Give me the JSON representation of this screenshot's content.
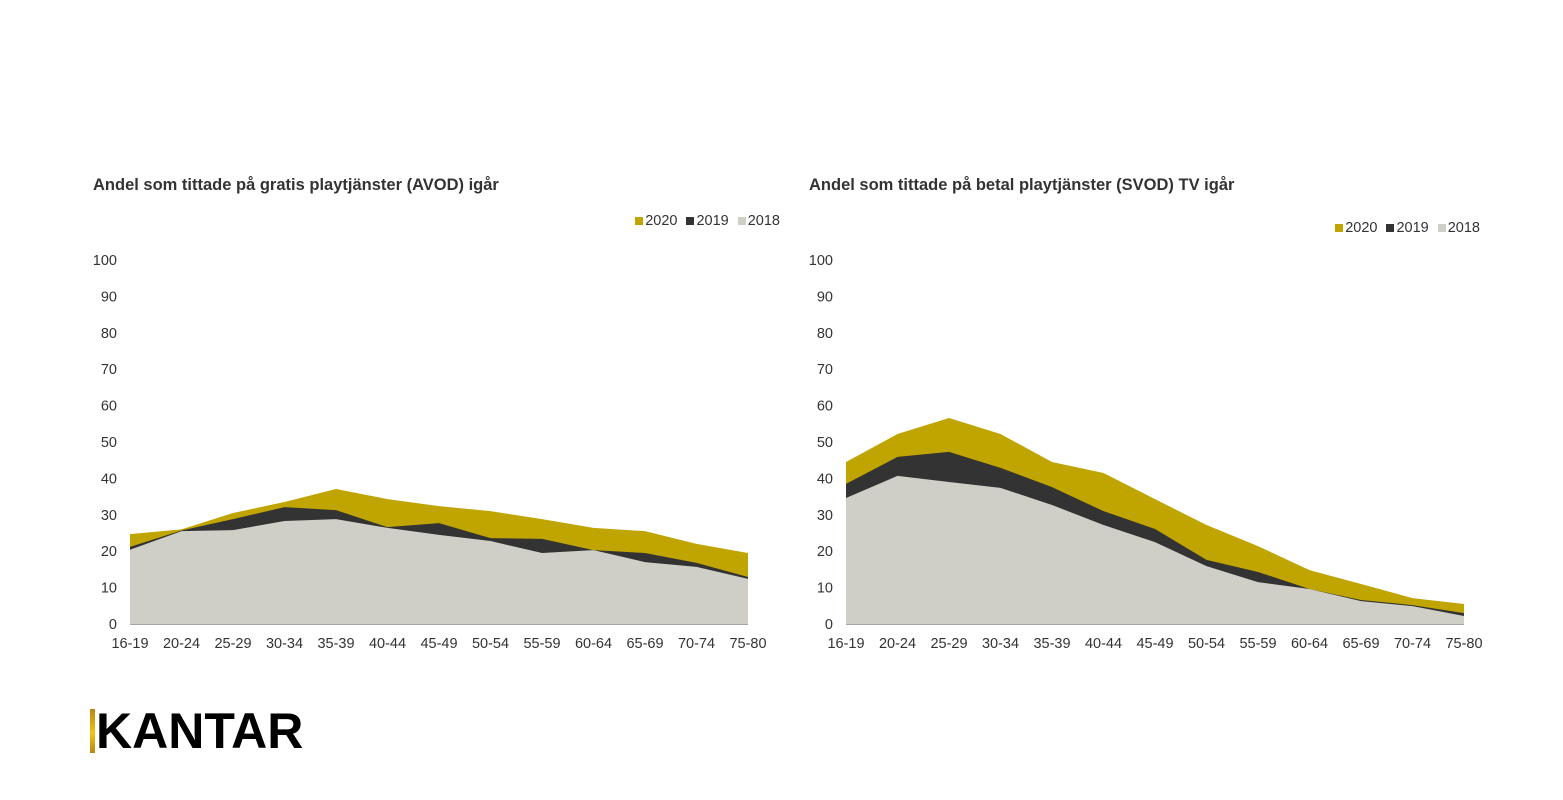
{
  "colors": {
    "2020": "#c0a400",
    "2019": "#333333",
    "2018": "#cfcfc7",
    "axis": "#a6a6a0"
  },
  "logo": {
    "text": "KANTAR"
  },
  "chart_data": [
    {
      "type": "area",
      "title": "Andel som tittade på gratis playtjänster (AVOD) igår",
      "xlabel": "",
      "ylabel": "",
      "ylim": [
        0,
        100
      ],
      "yticks": [
        0,
        10,
        20,
        30,
        40,
        50,
        60,
        70,
        80,
        90,
        100
      ],
      "grid": false,
      "legend_position": "top-right",
      "legend": [
        "2020",
        "2019",
        "2018"
      ],
      "categories": [
        "16-19",
        "20-24",
        "25-29",
        "30-34",
        "35-39",
        "40-44",
        "45-49",
        "50-54",
        "55-59",
        "60-64",
        "65-69",
        "70-74",
        "75-80"
      ],
      "series": [
        {
          "name": "2020",
          "values": [
            24.7,
            26.0,
            30.5,
            33.5,
            37.1,
            34.3,
            32.4,
            31.0,
            28.8,
            26.4,
            25.5,
            22.0,
            19.5
          ]
        },
        {
          "name": "2019",
          "values": [
            21.2,
            25.7,
            28.8,
            32.1,
            31.3,
            26.6,
            27.7,
            23.6,
            23.4,
            20.3,
            19.5,
            16.8,
            12.9
          ]
        },
        {
          "name": "2018",
          "values": [
            20.4,
            25.5,
            25.8,
            28.3,
            28.8,
            26.4,
            24.5,
            22.8,
            19.5,
            20.3,
            17.0,
            15.7,
            12.4
          ]
        }
      ]
    },
    {
      "type": "area",
      "title": "Andel som tittade på betal playtjänster (SVOD) TV igår",
      "xlabel": "",
      "ylabel": "",
      "ylim": [
        0,
        100
      ],
      "yticks": [
        0,
        10,
        20,
        30,
        40,
        50,
        60,
        70,
        80,
        90,
        100
      ],
      "grid": false,
      "legend_position": "top-right",
      "legend": [
        "2020",
        "2019",
        "2018"
      ],
      "categories": [
        "16-19",
        "20-24",
        "25-29",
        "30-34",
        "35-39",
        "40-44",
        "45-49",
        "50-54",
        "55-59",
        "60-64",
        "65-69",
        "70-74",
        "75-80"
      ],
      "series": [
        {
          "name": "2020",
          "values": [
            44.5,
            52.2,
            56.6,
            52.2,
            44.5,
            41.5,
            34.3,
            27.2,
            21.4,
            14.8,
            11.0,
            7.1,
            5.5
          ]
        },
        {
          "name": "2019",
          "values": [
            38.5,
            45.9,
            47.3,
            42.9,
            37.6,
            31.0,
            26.1,
            17.6,
            14.3,
            9.6,
            6.6,
            5.2,
            3.0
          ]
        },
        {
          "name": "2018",
          "values": [
            34.6,
            40.7,
            39.0,
            37.4,
            32.7,
            27.2,
            22.5,
            15.9,
            11.5,
            9.6,
            6.3,
            4.9,
            2.2
          ]
        }
      ]
    }
  ]
}
